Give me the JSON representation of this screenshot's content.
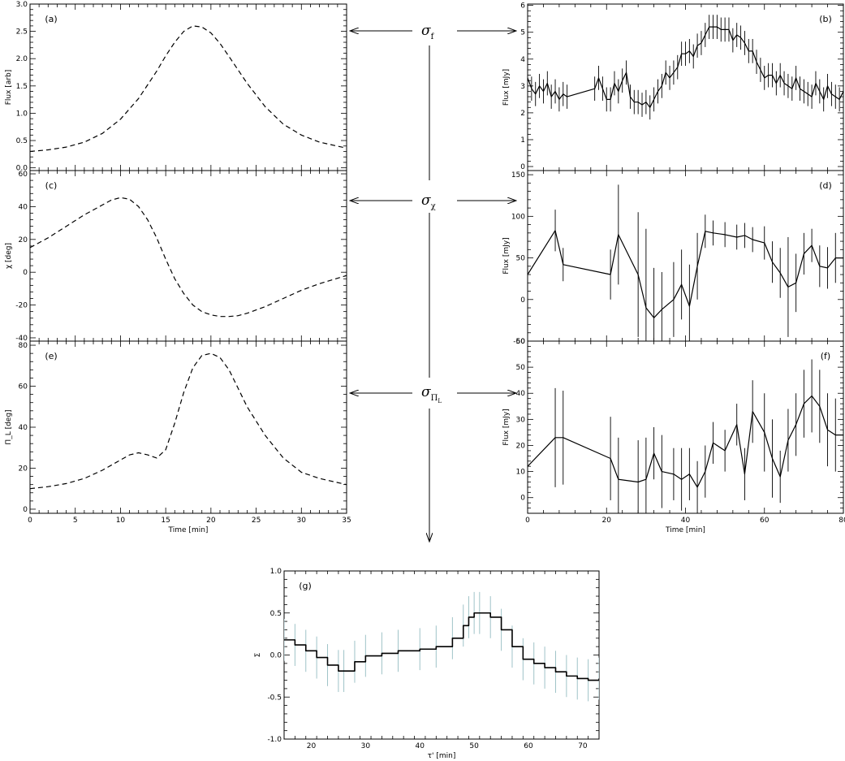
{
  "figure": {
    "sigma_labels": [
      {
        "symbol": "σ",
        "subscript": "f"
      },
      {
        "symbol": "σ",
        "subscript": "χ"
      },
      {
        "symbol": "σ",
        "subscript": "Π",
        "subsubscript": "L"
      }
    ]
  },
  "chart_data": [
    {
      "id": "a",
      "type": "line",
      "panel_label": "(a)",
      "style": "dashed",
      "xlabel": "",
      "ylabel": "Flux [arb]",
      "xlim": [
        0,
        35
      ],
      "ylim": [
        -0.05,
        3.0
      ],
      "xticks": [
        0,
        5,
        10,
        15,
        20,
        25,
        30,
        35
      ],
      "xticklabels_shown": false,
      "yticks": [
        0.0,
        0.5,
        1.0,
        1.5,
        2.0,
        2.5,
        3.0
      ],
      "yticklabels": [
        "0.0",
        "0.5",
        "1.0",
        "1.5",
        "2.0",
        "2.5",
        "3.0"
      ],
      "x": [
        0,
        2,
        4,
        6,
        8,
        10,
        12,
        14,
        15,
        16,
        17,
        18,
        19,
        20,
        21,
        22,
        24,
        26,
        28,
        30,
        32,
        35
      ],
      "y": [
        0.3,
        0.33,
        0.38,
        0.47,
        0.63,
        0.89,
        1.27,
        1.77,
        2.05,
        2.3,
        2.5,
        2.6,
        2.58,
        2.47,
        2.28,
        2.04,
        1.55,
        1.12,
        0.8,
        0.6,
        0.47,
        0.36
      ]
    },
    {
      "id": "b",
      "type": "line",
      "panel_label": "(b)",
      "style": "solid-errorbars",
      "xlabel": "",
      "ylabel": "Flux [mJy]",
      "xlim": [
        0,
        80
      ],
      "ylim": [
        -0.15,
        6.05
      ],
      "xticks": [
        0,
        20,
        40,
        60,
        80
      ],
      "xticklabels_shown": false,
      "yticks": [
        0,
        1,
        2,
        3,
        4,
        5,
        6
      ],
      "yticklabels": [
        "0",
        "1",
        "2",
        "3",
        "4",
        "5",
        "6"
      ],
      "x": [
        0,
        1,
        2,
        3,
        4,
        5,
        6,
        7,
        8,
        9,
        10,
        17,
        18,
        19,
        20,
        21,
        22,
        23,
        24,
        25,
        26,
        27,
        28,
        29,
        30,
        31,
        32,
        33,
        34,
        35,
        36,
        37,
        38,
        39,
        40,
        41,
        42,
        43,
        44,
        45,
        46,
        47,
        48,
        49,
        50,
        51,
        52,
        53,
        54,
        55,
        56,
        57,
        58,
        59,
        60,
        61,
        62,
        63,
        64,
        65,
        66,
        67,
        68,
        69,
        70,
        71,
        72,
        73,
        74,
        75,
        76,
        77,
        78,
        79,
        80
      ],
      "y": [
        3.3,
        2.9,
        2.7,
        3.0,
        2.8,
        3.1,
        2.6,
        2.8,
        2.5,
        2.7,
        2.6,
        2.9,
        3.3,
        2.9,
        2.5,
        2.5,
        3.1,
        2.8,
        3.2,
        3.5,
        2.6,
        2.4,
        2.4,
        2.3,
        2.4,
        2.2,
        2.5,
        2.8,
        3.0,
        3.5,
        3.3,
        3.5,
        3.7,
        4.2,
        4.2,
        4.3,
        4.1,
        4.5,
        4.6,
        4.9,
        5.2,
        5.2,
        5.2,
        5.1,
        5.1,
        5.1,
        4.7,
        4.9,
        4.8,
        4.6,
        4.3,
        4.3,
        3.9,
        3.6,
        3.3,
        3.4,
        3.4,
        3.1,
        3.4,
        3.1,
        3.0,
        2.9,
        3.3,
        2.9,
        2.8,
        2.7,
        2.6,
        3.1,
        2.8,
        2.5,
        3.0,
        2.7,
        2.6,
        2.5,
        2.8
      ],
      "err": 0.45
    },
    {
      "id": "c",
      "type": "line",
      "panel_label": "(c)",
      "style": "dashed",
      "xlabel": "",
      "ylabel": "χ [deg]",
      "xlim": [
        0,
        35
      ],
      "ylim": [
        -42,
        62
      ],
      "xticks": [
        0,
        5,
        10,
        15,
        20,
        25,
        30,
        35
      ],
      "xticklabels_shown": false,
      "yticks": [
        -40,
        -20,
        0,
        20,
        40,
        60
      ],
      "yticklabels": [
        "-40",
        "-20",
        "0",
        "20",
        "40",
        "60"
      ],
      "x": [
        0,
        2,
        4,
        6,
        8,
        9,
        10,
        11,
        12,
        13,
        14,
        15,
        16,
        17,
        18,
        19,
        20,
        21,
        22,
        23,
        24,
        26,
        28,
        30,
        32,
        35
      ],
      "y": [
        15,
        21,
        28,
        35,
        41,
        44,
        45.5,
        44.5,
        40,
        32,
        21,
        8,
        -4,
        -13,
        -20,
        -24,
        -26,
        -27,
        -27,
        -26.5,
        -25,
        -21,
        -16,
        -11,
        -7,
        -2
      ]
    },
    {
      "id": "d",
      "type": "line",
      "panel_label": "(d)",
      "style": "solid-errorbars",
      "xlabel": "",
      "ylabel": "Flux [mJy]",
      "xlim": [
        0,
        80
      ],
      "ylim": [
        -50,
        155
      ],
      "xticks": [
        0,
        20,
        40,
        60,
        80
      ],
      "xticklabels_shown": false,
      "yticks": [
        -50,
        0,
        50,
        100,
        150
      ],
      "yticklabels": [
        "-50",
        "0",
        "50",
        "100",
        "150"
      ],
      "x": [
        0,
        7,
        9,
        21,
        23,
        28,
        30,
        32,
        34,
        37,
        39,
        41,
        43,
        45,
        47,
        50,
        53,
        55,
        57,
        60,
        62,
        64,
        66,
        68,
        70,
        72,
        74,
        76,
        78,
        80
      ],
      "y": [
        30,
        83,
        42,
        30,
        78,
        30,
        -10,
        -22,
        -12,
        0,
        18,
        -8,
        40,
        82,
        80,
        78,
        75,
        77,
        72,
        68,
        45,
        32,
        15,
        20,
        55,
        65,
        40,
        38,
        50,
        50
      ],
      "err": [
        0,
        25,
        20,
        30,
        60,
        75,
        95,
        60,
        45,
        45,
        42,
        50,
        40,
        20,
        15,
        15,
        15,
        15,
        15,
        20,
        25,
        30,
        60,
        35,
        25,
        20,
        25,
        25,
        30,
        30
      ]
    },
    {
      "id": "e",
      "type": "line",
      "panel_label": "(e)",
      "style": "dashed",
      "xlabel": "Time [min]",
      "ylabel": "Π_L [deg]",
      "xlim": [
        0,
        35
      ],
      "ylim": [
        -2,
        82
      ],
      "xticks": [
        0,
        5,
        10,
        15,
        20,
        25,
        30,
        35
      ],
      "xticklabels": [
        "0",
        "5",
        "10",
        "15",
        "20",
        "25",
        "30",
        "35"
      ],
      "yticks": [
        0,
        20,
        40,
        60,
        80
      ],
      "yticklabels": [
        "0",
        "20",
        "40",
        "60",
        "80"
      ],
      "x": [
        0,
        2,
        4,
        6,
        8,
        10,
        11,
        12,
        13,
        14,
        15,
        16,
        17,
        18,
        19,
        20,
        21,
        22,
        23,
        24,
        26,
        28,
        30,
        32,
        35
      ],
      "y": [
        10,
        11,
        12.5,
        15,
        19,
        24,
        26.5,
        27.5,
        26.5,
        25,
        29,
        42,
        57,
        69,
        75,
        76,
        74,
        68,
        59,
        50,
        36,
        25,
        18,
        15,
        12
      ]
    },
    {
      "id": "f",
      "type": "line",
      "panel_label": "(f)",
      "style": "solid-errorbars",
      "xlabel": "Time [min]",
      "ylabel": "Flux [mJy]",
      "xlim": [
        0,
        80
      ],
      "ylim": [
        -6,
        60
      ],
      "xticks": [
        0,
        20,
        40,
        60,
        80
      ],
      "xticklabels": [
        "0",
        "20",
        "40",
        "60",
        "80"
      ],
      "yticks": [
        0,
        10,
        20,
        30,
        40,
        50,
        60
      ],
      "yticklabels": [
        "0",
        "10",
        "20",
        "30",
        "40",
        "50",
        "60"
      ],
      "x": [
        0,
        7,
        9,
        21,
        23,
        28,
        30,
        32,
        34,
        37,
        39,
        41,
        43,
        45,
        47,
        50,
        53,
        55,
        57,
        60,
        62,
        64,
        66,
        68,
        70,
        72,
        74,
        76,
        78,
        80
      ],
      "y": [
        12,
        23,
        23,
        15,
        7,
        6,
        7,
        17,
        10,
        9,
        7,
        9,
        4,
        10,
        21,
        18,
        28,
        9,
        33,
        25,
        15,
        8,
        22,
        28,
        36,
        39,
        35,
        26,
        24,
        24
      ],
      "err": [
        0,
        19,
        18,
        16,
        16,
        16,
        16,
        10,
        14,
        10,
        12,
        10,
        10,
        10,
        8,
        8,
        8,
        10,
        12,
        15,
        15,
        10,
        12,
        12,
        13,
        14,
        14,
        14,
        14,
        14
      ]
    },
    {
      "id": "g",
      "type": "line",
      "panel_label": "(g)",
      "style": "step-errorbars",
      "xlabel": "τ' [min]",
      "ylabel": "Σ",
      "xlim": [
        15,
        73
      ],
      "ylim": [
        -1.0,
        1.0
      ],
      "xticks": [
        20,
        30,
        40,
        50,
        60,
        70
      ],
      "xticklabels": [
        "20",
        "30",
        "40",
        "50",
        "60",
        "70"
      ],
      "yticks": [
        -1.0,
        -0.5,
        0.0,
        0.5,
        1.0
      ],
      "yticklabels": [
        "-1.0",
        "-0.5",
        "0.0",
        "0.5",
        "1.0"
      ],
      "x": [
        15,
        17,
        19,
        21,
        23,
        25,
        26,
        28,
        30,
        33,
        36,
        40,
        43,
        46,
        48,
        49,
        50,
        51,
        53,
        55,
        57,
        59,
        61,
        63,
        65,
        67,
        69,
        71,
        73
      ],
      "y": [
        0.18,
        0.12,
        0.05,
        -0.03,
        -0.12,
        -0.19,
        -0.19,
        -0.08,
        -0.01,
        0.02,
        0.05,
        0.07,
        0.1,
        0.2,
        0.35,
        0.45,
        0.5,
        0.5,
        0.45,
        0.3,
        0.1,
        -0.05,
        -0.1,
        -0.15,
        -0.2,
        -0.25,
        -0.28,
        -0.3,
        -0.28
      ],
      "err": 0.25,
      "err_color": "#9fc3c8"
    }
  ]
}
